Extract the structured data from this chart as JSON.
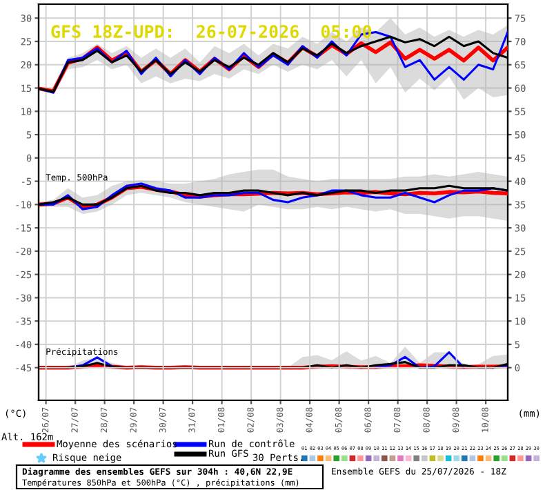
{
  "chart_data": {
    "type": "line",
    "title": "GFS 18Z-UPD:  26-07-2026  05:00",
    "x": [
      "2026-07-25T18:00",
      "2026-07-26T06:00",
      "2026-07-26T18:00",
      "2026-07-27T06:00",
      "2026-07-27T18:00",
      "2026-07-28T06:00",
      "2026-07-28T18:00",
      "2026-07-29T06:00",
      "2026-07-29T18:00",
      "2026-07-30T06:00",
      "2026-07-30T18:00",
      "2026-07-31T06:00",
      "2026-07-31T18:00",
      "2026-08-01T06:00",
      "2026-08-01T18:00",
      "2026-08-02T06:00",
      "2026-08-02T18:00",
      "2026-08-03T06:00",
      "2026-08-03T18:00",
      "2026-08-04T06:00",
      "2026-08-04T18:00",
      "2026-08-05T06:00",
      "2026-08-05T18:00",
      "2026-08-06T06:00",
      "2026-08-06T18:00",
      "2026-08-07T06:00",
      "2026-08-07T18:00",
      "2026-08-08T06:00",
      "2026-08-08T18:00",
      "2026-08-09T06:00",
      "2026-08-09T18:00",
      "2026-08-10T06:00",
      "2026-08-10T18:00"
    ],
    "xlim": [
      "2026-07-25T18:00",
      "2026-08-10T18:00"
    ],
    "xticks": [
      {
        "value": "2026-07-26",
        "label": "26/07"
      },
      {
        "value": "2026-07-27",
        "label": "27/07"
      },
      {
        "value": "2026-07-28",
        "label": "28/07"
      },
      {
        "value": "2026-07-29",
        "label": "29/07"
      },
      {
        "value": "2026-07-30",
        "label": "30/07"
      },
      {
        "value": "2026-07-31",
        "label": "31/07"
      },
      {
        "value": "2026-08-01",
        "label": "01/08"
      },
      {
        "value": "2026-08-02",
        "label": "02/08"
      },
      {
        "value": "2026-08-03",
        "label": "03/08"
      },
      {
        "value": "2026-08-04",
        "label": "04/08"
      },
      {
        "value": "2026-08-05",
        "label": "05/08"
      },
      {
        "value": "2026-08-06",
        "label": "06/08"
      },
      {
        "value": "2026-08-07",
        "label": "07/08"
      },
      {
        "value": "2026-08-08",
        "label": "08/08"
      },
      {
        "value": "2026-08-09",
        "label": "09/08"
      },
      {
        "value": "2026-08-10",
        "label": "10/08"
      }
    ],
    "ylim": [
      -52,
      33
    ],
    "yticks": [
      30,
      25,
      20,
      15,
      10,
      5,
      0,
      -5,
      -10,
      -15,
      -20,
      -25,
      -30,
      -35,
      -40,
      -45
    ],
    "y2lim": [
      -7,
      78
    ],
    "y2ticks": [
      75,
      70,
      65,
      60,
      55,
      50,
      45,
      40,
      35,
      30,
      25,
      20,
      15,
      10,
      5,
      0
    ],
    "ylabel": "(°C)",
    "y2label": "(mm)",
    "grid": true,
    "legend": "bottom",
    "series": [
      {
        "name": "Moyenne des scénarios",
        "color": "#ff0000",
        "values": [
          14.9,
          14.3,
          20.4,
          21.3,
          23.7,
          20.9,
          22.6,
          18.5,
          21.0,
          18.0,
          21.0,
          18.5,
          21.3,
          19.0,
          21.9,
          19.5,
          22.3,
          20.4,
          23.7,
          21.8,
          24.2,
          22.3,
          24.6,
          22.7,
          24.8,
          21.3,
          23.2,
          21.3,
          23.2,
          20.9,
          23.7,
          20.9,
          23.7
        ],
        "lower": [
          14.5,
          13.8,
          19,
          19.5,
          21,
          19,
          20,
          16,
          17.5,
          16,
          17,
          16.5,
          18,
          17,
          19,
          18,
          20,
          18.5,
          20,
          19,
          21,
          17.5,
          21,
          16,
          19.5,
          14,
          17,
          14.5,
          17.5,
          12.5,
          15,
          13,
          13.5
        ],
        "upper": [
          15.2,
          14.8,
          21.5,
          22.5,
          24.5,
          22.5,
          24,
          21.5,
          23.5,
          21.5,
          23.5,
          20.5,
          24,
          22.5,
          24.5,
          22,
          24.5,
          23.5,
          26,
          24.5,
          27,
          25,
          28,
          27,
          30,
          26.5,
          28,
          26,
          27.5,
          26,
          27.5,
          26.5,
          28.5
        ]
      },
      {
        "name": "Run de contrôle",
        "color": "#0000ff",
        "values": [
          14.9,
          14.0,
          21,
          21.5,
          23.5,
          20.5,
          23,
          18,
          21.5,
          17.5,
          21,
          18,
          21.5,
          19,
          22.5,
          19.5,
          22,
          20,
          24,
          21.5,
          25,
          22,
          26.5,
          27,
          26,
          19.5,
          21,
          16.8,
          19.5,
          16.8,
          20,
          19,
          27
        ]
      },
      {
        "name": "Run GFS",
        "color": "#000000",
        "values": [
          14.9,
          14.2,
          20.5,
          21,
          23,
          20.5,
          22,
          18.5,
          21,
          18,
          20.5,
          18.5,
          21,
          19.5,
          21.5,
          20,
          22.5,
          20.5,
          23.5,
          22,
          24.5,
          22.5,
          24,
          25,
          26,
          24.8,
          25.5,
          24,
          26,
          24,
          25,
          22.5,
          21.5
        ]
      },
      {
        "color": "#ff0000",
        "values": [
          -10,
          -9.8,
          -8.5,
          -10.5,
          -10,
          -8.5,
          -6.5,
          -6.2,
          -6.8,
          -7.2,
          -8,
          -8.3,
          -8,
          -7.8,
          -7.8,
          -7.7,
          -7.5,
          -7.6,
          -7.5,
          -7.8,
          -7.6,
          -7.4,
          -7.5,
          -7.3,
          -7.6,
          -7.8,
          -7.5,
          -7.6,
          -7.3,
          -7.4,
          -7.2,
          -7.5,
          -7.6
        ],
        "lower": [
          -10.5,
          -10.5,
          -10.5,
          -12,
          -11.5,
          -10,
          -8,
          -7.5,
          -8,
          -8.5,
          -9.5,
          -10,
          -10.5,
          -11,
          -11.5,
          -10,
          -10.5,
          -11,
          -11,
          -10.5,
          -11,
          -10.5,
          -11,
          -11.5,
          -11,
          -12,
          -12,
          -12.5,
          -13,
          -12.5,
          -12.5,
          -13,
          -13.5
        ],
        "upper": [
          -9.5,
          -9,
          -6.5,
          -8.5,
          -8,
          -6,
          -5,
          -4.8,
          -5,
          -5.5,
          -5.5,
          -5,
          -4.5,
          -3.5,
          -3,
          -2.5,
          -2.5,
          -4,
          -4.5,
          -5,
          -4.5,
          -4.5,
          -4.5,
          -4.5,
          -4.5,
          -4,
          -4,
          -3.5,
          -4,
          -3.5,
          -3,
          -3.5,
          -4
        ]
      },
      {
        "color": "#0000ff",
        "values": [
          -10,
          -10,
          -8,
          -11,
          -10.5,
          -8,
          -6,
          -5.5,
          -6.5,
          -7,
          -8.5,
          -8.5,
          -8,
          -8,
          -7.5,
          -7.5,
          -9,
          -9.5,
          -8.5,
          -8,
          -7,
          -7,
          -8,
          -8.5,
          -8.5,
          -7.5,
          -8.5,
          -9.5,
          -8,
          -7,
          -7,
          -6.5,
          -7
        ]
      },
      {
        "color": "#000000",
        "values": [
          -10,
          -9.5,
          -8.5,
          -10,
          -10,
          -8.5,
          -6.5,
          -6,
          -7,
          -7.5,
          -7.5,
          -8,
          -7.5,
          -7.5,
          -7,
          -7,
          -7.5,
          -8,
          -7.5,
          -8,
          -7.5,
          -7,
          -7,
          -7.5,
          -7,
          -7,
          -6.5,
          -6.5,
          -6,
          -6.5,
          -6.5,
          -6.5,
          -7
        ]
      },
      {
        "color": "#ff0000",
        "axis": "y2",
        "values": [
          0,
          0,
          0,
          0.2,
          0.5,
          0.2,
          0,
          0.1,
          0,
          0,
          0.1,
          0,
          0,
          0,
          0,
          0,
          0,
          0,
          0,
          0.2,
          0.3,
          0.2,
          0.1,
          0.1,
          0.3,
          0.3,
          0.5,
          0.4,
          0.2,
          0.1,
          0.2,
          0.2,
          0.3
        ],
        "lower": [
          0,
          0,
          0,
          0,
          0,
          0,
          0,
          0,
          0,
          0,
          0,
          0,
          0,
          0,
          0,
          0,
          0,
          0,
          0,
          0,
          0,
          0,
          0,
          0,
          0,
          0,
          0,
          0,
          0,
          0,
          0,
          0,
          0
        ],
        "upper": [
          0,
          0,
          0,
          1.5,
          2.2,
          1,
          0.3,
          0.4,
          0,
          0,
          0.3,
          0,
          0,
          0,
          0,
          0,
          0,
          0,
          2.3,
          2.7,
          1.6,
          3.5,
          1.5,
          2.5,
          1,
          4.5,
          1,
          3.3,
          3.3,
          0.8,
          0.7,
          2.5,
          2.8
        ]
      },
      {
        "color": "#0000ff",
        "axis": "y2",
        "values": [
          null,
          null,
          0,
          0.5,
          2.2,
          0.3,
          null,
          null,
          null,
          null,
          null,
          null,
          null,
          null,
          null,
          null,
          null,
          null,
          null,
          null,
          null,
          null,
          null,
          0,
          0.5,
          2.3,
          0,
          0.3,
          3.3,
          0,
          null,
          0,
          0.5
        ]
      },
      {
        "color": "#000000",
        "axis": "y2",
        "values": [
          0,
          0,
          0,
          0.3,
          1,
          0.2,
          0,
          0,
          0,
          0,
          0,
          0,
          0,
          0,
          0,
          0,
          0,
          0,
          0,
          0.5,
          0,
          0.5,
          0,
          0.5,
          0.8,
          1.2,
          0,
          0,
          0.5,
          0.5,
          0,
          0,
          0.8
        ]
      }
    ],
    "annotations": [
      "Temp. 500hPa",
      "Précipitations",
      "Alt. 162m",
      "Risque neige",
      "30 Perts.",
      "01 02 03 04 05 06 07 08 09 10 11 12 13 14 15 16 17 18 19 20 21 22 23 24 25 26 27 28 29 30",
      "Diagramme des ensembles GEFS sur 304h : 40,6N 22,9E",
      "Températures 850hPa et 500hPa (°C) , précipitations (mm)",
      "Ensemble GEFS du 25/07/2026 - 18Z"
    ]
  }
}
